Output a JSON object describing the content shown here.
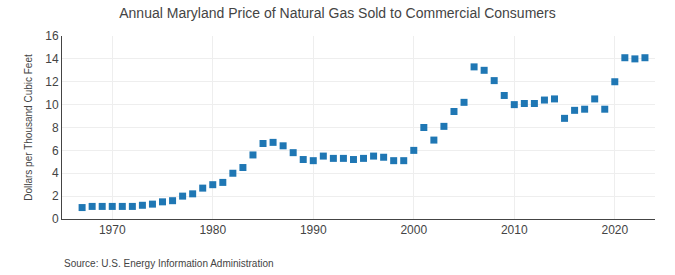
{
  "chart_data": {
    "type": "scatter",
    "title": "Annual Maryland Price of Natural Gas Sold to Commercial Consumers",
    "ylabel": "Dollars per Thousand Cubic Feet",
    "annotations": [
      "Source: U.S. Energy Information Administration"
    ],
    "marker": "square",
    "grid": true,
    "xlim": [
      1965,
      2024
    ],
    "xticks": [
      1970,
      1980,
      1990,
      2000,
      2010,
      2020
    ],
    "ylim": [
      0,
      16
    ],
    "yticks": [
      0,
      2,
      4,
      6,
      8,
      10,
      12,
      14,
      16
    ],
    "x": [
      1967,
      1968,
      1969,
      1970,
      1971,
      1972,
      1973,
      1974,
      1975,
      1976,
      1977,
      1978,
      1979,
      1980,
      1981,
      1982,
      1983,
      1984,
      1985,
      1986,
      1987,
      1988,
      1989,
      1990,
      1991,
      1992,
      1993,
      1994,
      1995,
      1996,
      1997,
      1998,
      1999,
      2000,
      2001,
      2002,
      2003,
      2004,
      2005,
      2006,
      2007,
      2008,
      2009,
      2010,
      2011,
      2012,
      2013,
      2014,
      2015,
      2016,
      2017,
      2018,
      2019,
      2020,
      2021,
      2022,
      2023
    ],
    "values": [
      1.0,
      1.1,
      1.1,
      1.1,
      1.1,
      1.1,
      1.2,
      1.3,
      1.5,
      1.6,
      2.0,
      2.2,
      2.7,
      3.0,
      3.2,
      4.0,
      4.5,
      5.6,
      6.6,
      6.7,
      6.4,
      5.8,
      5.2,
      5.1,
      5.5,
      5.3,
      5.3,
      5.2,
      5.3,
      5.5,
      5.4,
      5.1,
      5.1,
      6.0,
      8.0,
      6.9,
      8.1,
      9.4,
      10.2,
      13.3,
      13.0,
      12.1,
      10.8,
      10.0,
      10.1,
      10.1,
      10.4,
      10.5,
      8.8,
      9.5,
      9.6,
      10.5,
      9.6,
      12.0,
      14.1,
      14.0,
      14.1
    ]
  }
}
